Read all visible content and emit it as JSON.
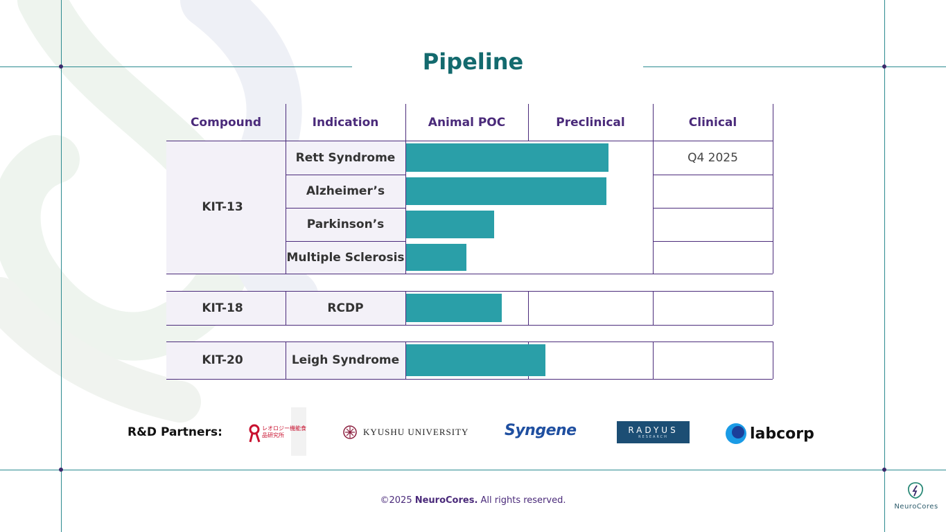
{
  "title": "Pipeline",
  "table": {
    "headers": [
      "Compound",
      "Indication",
      "Animal POC",
      "Preclinical",
      "Clinical"
    ],
    "groups": [
      {
        "compound": "KIT-13",
        "rows": [
          {
            "indication": "Rett Syndrome",
            "progress": 0.55,
            "clinical": "Q4 2025"
          },
          {
            "indication": "Alzheimer’s",
            "progress": 0.545,
            "clinical": ""
          },
          {
            "indication": "Parkinson’s",
            "progress": 0.24,
            "clinical": ""
          },
          {
            "indication": "Multiple Sclerosis",
            "progress": 0.165,
            "clinical": ""
          }
        ]
      },
      {
        "compound": "KIT-18",
        "rows": [
          {
            "indication": "RCDP",
            "progress": 0.26,
            "clinical": ""
          }
        ]
      },
      {
        "compound": "KIT-20",
        "rows": [
          {
            "indication": "Leigh Syndrome",
            "progress": 0.38,
            "clinical": ""
          }
        ]
      }
    ]
  },
  "partners": {
    "label": "R&D Partners:",
    "logos": [
      {
        "name": "レオロジー機能食品研究所",
        "icon": "leology-logo"
      },
      {
        "name": "KYUSHU UNIVERSITY",
        "icon": "kyushu-university-crest"
      },
      {
        "name": "Syngene",
        "icon": "syngene-wordmark"
      },
      {
        "name": "RADYUS",
        "sub": "RESEARCH",
        "icon": "radyus-logo"
      },
      {
        "name": "labcorp",
        "icon": "labcorp-logo"
      }
    ]
  },
  "footer": {
    "prefix": "©2025 ",
    "brand": "NeuroCores.",
    "suffix": " All rights reserved."
  },
  "brand_logo": {
    "text": "NeuroCores",
    "icon": "neurocores-logo"
  },
  "colors": {
    "accent": "#2a9fa8",
    "title": "#136a6e",
    "purple": "#4a2a7a"
  }
}
